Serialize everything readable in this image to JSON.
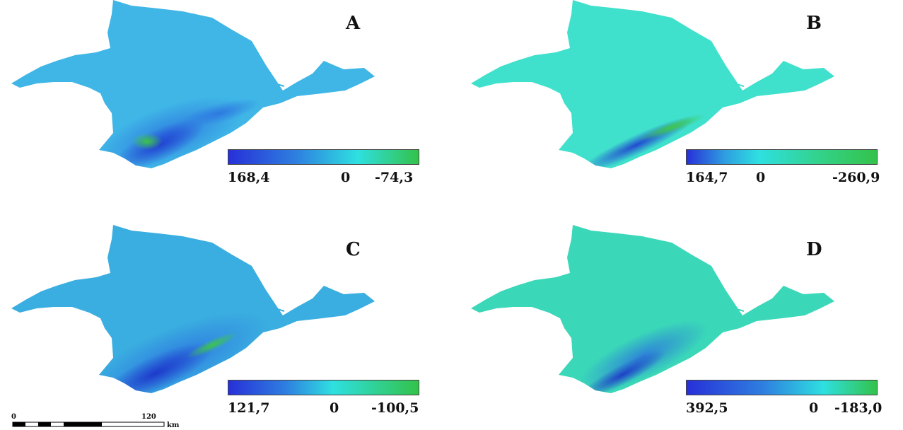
{
  "panels": [
    {
      "label": "A",
      "legend": {
        "left": "168,4",
        "center": "0",
        "right": "-74,3"
      }
    },
    {
      "label": "B",
      "legend": {
        "left": "164,7",
        "center": "0",
        "right": "-260,9"
      }
    },
    {
      "label": "C",
      "legend": {
        "left": "121,7",
        "center": "0",
        "right": "-100,5"
      }
    },
    {
      "label": "D",
      "legend": {
        "left": "392,5",
        "center": "0",
        "right": "-183,0"
      }
    }
  ],
  "scale_bar": {
    "start": "0",
    "end": "120",
    "unit": "km"
  },
  "colors": {
    "ramp_low": "#2730d8",
    "ramp_mid": "#2ee0e0",
    "ramp_high": "#33c24a",
    "panel_a_land": "#3fb6e6",
    "panel_b_land": "#3fe0cc",
    "panel_c_land": "#3aaee0",
    "panel_d_land": "#3ad8b8"
  }
}
